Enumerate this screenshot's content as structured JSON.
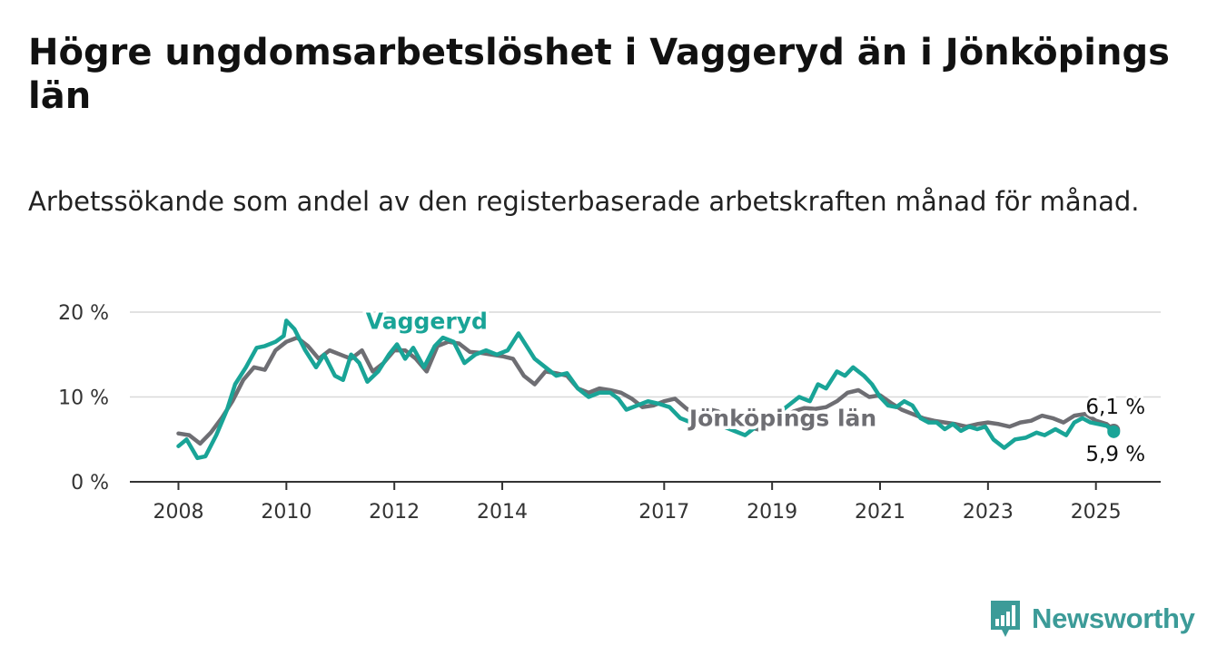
{
  "title": "Högre ungdomsarbetslöshet i Vaggeryd än i Jönköpings län",
  "subtitle": "Arbetssökande som andel av den registerbaserade arbetskraften månad för månad.",
  "brand": {
    "name": "Newsworthy",
    "color": "#3c9b98"
  },
  "chart_data": {
    "type": "line",
    "xlim": [
      2007.1,
      2026.2
    ],
    "ylim": [
      0,
      20
    ],
    "y_ticks": [
      {
        "value": 0,
        "label": "0 %"
      },
      {
        "value": 10,
        "label": "10 %"
      },
      {
        "value": 20,
        "label": "20 %"
      }
    ],
    "x_ticks": [
      {
        "value": 2008,
        "label": "2008"
      },
      {
        "value": 2010,
        "label": "2010"
      },
      {
        "value": 2012,
        "label": "2012"
      },
      {
        "value": 2014,
        "label": "2014"
      },
      {
        "value": 2017,
        "label": "2017"
      },
      {
        "value": 2019,
        "label": "2019"
      },
      {
        "value": 2021,
        "label": "2021"
      },
      {
        "value": 2023,
        "label": "2023"
      },
      {
        "value": 2025,
        "label": "2025"
      }
    ],
    "grid": "horizontal",
    "legend": "inline labels",
    "series": [
      {
        "name": "Jönköpings län",
        "color": "#6e6e73",
        "label_position": {
          "x": 2019.2,
          "y": 6.6
        },
        "end_label": "6,1 %",
        "points": [
          [
            2008.0,
            5.7
          ],
          [
            2008.2,
            5.5
          ],
          [
            2008.4,
            4.5
          ],
          [
            2008.6,
            5.8
          ],
          [
            2008.8,
            7.5
          ],
          [
            2009.0,
            9.5
          ],
          [
            2009.2,
            12.0
          ],
          [
            2009.4,
            13.5
          ],
          [
            2009.6,
            13.2
          ],
          [
            2009.8,
            15.5
          ],
          [
            2010.0,
            16.5
          ],
          [
            2010.2,
            17.0
          ],
          [
            2010.4,
            16.0
          ],
          [
            2010.6,
            14.5
          ],
          [
            2010.8,
            15.5
          ],
          [
            2011.0,
            15.0
          ],
          [
            2011.2,
            14.5
          ],
          [
            2011.4,
            15.5
          ],
          [
            2011.6,
            13.0
          ],
          [
            2011.8,
            14.0
          ],
          [
            2012.0,
            15.5
          ],
          [
            2012.2,
            15.5
          ],
          [
            2012.4,
            14.5
          ],
          [
            2012.6,
            13.0
          ],
          [
            2012.8,
            16.0
          ],
          [
            2013.0,
            16.5
          ],
          [
            2013.2,
            16.3
          ],
          [
            2013.4,
            15.3
          ],
          [
            2013.6,
            15.2
          ],
          [
            2013.8,
            15.0
          ],
          [
            2014.0,
            14.8
          ],
          [
            2014.2,
            14.5
          ],
          [
            2014.4,
            12.5
          ],
          [
            2014.6,
            11.5
          ],
          [
            2014.8,
            13.0
          ],
          [
            2015.0,
            12.8
          ],
          [
            2015.2,
            12.5
          ],
          [
            2015.4,
            11.0
          ],
          [
            2015.6,
            10.5
          ],
          [
            2015.8,
            11.0
          ],
          [
            2016.0,
            10.8
          ],
          [
            2016.2,
            10.5
          ],
          [
            2016.4,
            9.8
          ],
          [
            2016.6,
            8.8
          ],
          [
            2016.8,
            9.0
          ],
          [
            2017.0,
            9.5
          ],
          [
            2017.2,
            9.8
          ],
          [
            2017.4,
            8.7
          ],
          [
            2017.6,
            7.8
          ],
          [
            2017.8,
            8.6
          ],
          [
            2018.0,
            8.3
          ],
          [
            2018.2,
            7.2
          ],
          [
            2018.4,
            6.8
          ],
          [
            2018.6,
            6.4
          ],
          [
            2018.8,
            6.1
          ],
          [
            2019.0,
            6.6
          ],
          [
            2019.2,
            7.5
          ],
          [
            2019.4,
            8.3
          ],
          [
            2019.6,
            8.7
          ],
          [
            2019.8,
            8.6
          ],
          [
            2020.0,
            8.8
          ],
          [
            2020.2,
            9.5
          ],
          [
            2020.4,
            10.5
          ],
          [
            2020.6,
            10.8
          ],
          [
            2020.8,
            10.0
          ],
          [
            2021.0,
            10.2
          ],
          [
            2021.2,
            9.3
          ],
          [
            2021.4,
            8.5
          ],
          [
            2021.6,
            8.0
          ],
          [
            2021.8,
            7.5
          ],
          [
            2022.0,
            7.2
          ],
          [
            2022.2,
            7.0
          ],
          [
            2022.4,
            6.8
          ],
          [
            2022.6,
            6.5
          ],
          [
            2022.8,
            6.8
          ],
          [
            2023.0,
            7.0
          ],
          [
            2023.2,
            6.8
          ],
          [
            2023.4,
            6.5
          ],
          [
            2023.6,
            7.0
          ],
          [
            2023.8,
            7.2
          ],
          [
            2024.0,
            7.8
          ],
          [
            2024.2,
            7.5
          ],
          [
            2024.4,
            7.0
          ],
          [
            2024.6,
            7.8
          ],
          [
            2024.8,
            8.0
          ],
          [
            2025.0,
            7.2
          ],
          [
            2025.2,
            6.8
          ],
          [
            2025.33,
            6.1
          ]
        ]
      },
      {
        "name": "Vaggeryd",
        "color": "#19a497",
        "label_position": {
          "x": 2012.6,
          "y": 18.0
        },
        "end_label": "5,9 %",
        "points": [
          [
            2008.0,
            4.2
          ],
          [
            2008.15,
            5.0
          ],
          [
            2008.35,
            2.8
          ],
          [
            2008.5,
            3.0
          ],
          [
            2008.7,
            5.5
          ],
          [
            2008.9,
            8.5
          ],
          [
            2009.05,
            11.5
          ],
          [
            2009.25,
            13.5
          ],
          [
            2009.45,
            15.8
          ],
          [
            2009.6,
            16.0
          ],
          [
            2009.8,
            16.5
          ],
          [
            2009.95,
            17.2
          ],
          [
            2010.0,
            19.0
          ],
          [
            2010.15,
            18.0
          ],
          [
            2010.35,
            15.5
          ],
          [
            2010.55,
            13.5
          ],
          [
            2010.7,
            15.0
          ],
          [
            2010.9,
            12.5
          ],
          [
            2011.05,
            12.0
          ],
          [
            2011.2,
            15.0
          ],
          [
            2011.35,
            14.0
          ],
          [
            2011.5,
            11.8
          ],
          [
            2011.7,
            13.0
          ],
          [
            2011.9,
            15.0
          ],
          [
            2012.05,
            16.2
          ],
          [
            2012.2,
            14.5
          ],
          [
            2012.35,
            15.8
          ],
          [
            2012.55,
            13.5
          ],
          [
            2012.75,
            16.0
          ],
          [
            2012.9,
            17.0
          ],
          [
            2013.1,
            16.5
          ],
          [
            2013.3,
            14.0
          ],
          [
            2013.5,
            15.0
          ],
          [
            2013.7,
            15.5
          ],
          [
            2013.9,
            15.0
          ],
          [
            2014.1,
            15.5
          ],
          [
            2014.3,
            17.5
          ],
          [
            2014.45,
            16.0
          ],
          [
            2014.6,
            14.5
          ],
          [
            2014.8,
            13.5
          ],
          [
            2015.0,
            12.5
          ],
          [
            2015.2,
            12.8
          ],
          [
            2015.4,
            11.0
          ],
          [
            2015.6,
            10.0
          ],
          [
            2015.8,
            10.5
          ],
          [
            2016.0,
            10.5
          ],
          [
            2016.15,
            9.8
          ],
          [
            2016.3,
            8.5
          ],
          [
            2016.5,
            9.0
          ],
          [
            2016.7,
            9.5
          ],
          [
            2016.9,
            9.2
          ],
          [
            2017.1,
            8.8
          ],
          [
            2017.3,
            7.5
          ],
          [
            2017.5,
            7.0
          ],
          [
            2017.7,
            7.5
          ],
          [
            2017.9,
            7.0
          ],
          [
            2018.1,
            6.5
          ],
          [
            2018.3,
            6.0
          ],
          [
            2018.5,
            5.5
          ],
          [
            2018.7,
            6.5
          ],
          [
            2018.9,
            7.5
          ],
          [
            2019.1,
            8.0
          ],
          [
            2019.3,
            9.0
          ],
          [
            2019.5,
            10.0
          ],
          [
            2019.7,
            9.5
          ],
          [
            2019.85,
            11.5
          ],
          [
            2020.0,
            11.0
          ],
          [
            2020.2,
            13.0
          ],
          [
            2020.35,
            12.5
          ],
          [
            2020.5,
            13.5
          ],
          [
            2020.7,
            12.5
          ],
          [
            2020.85,
            11.5
          ],
          [
            2021.0,
            10.0
          ],
          [
            2021.15,
            9.0
          ],
          [
            2021.3,
            8.8
          ],
          [
            2021.45,
            9.5
          ],
          [
            2021.6,
            9.0
          ],
          [
            2021.75,
            7.5
          ],
          [
            2021.9,
            7.0
          ],
          [
            2022.05,
            7.0
          ],
          [
            2022.2,
            6.2
          ],
          [
            2022.35,
            6.8
          ],
          [
            2022.5,
            6.0
          ],
          [
            2022.65,
            6.5
          ],
          [
            2022.8,
            6.2
          ],
          [
            2022.95,
            6.5
          ],
          [
            2023.1,
            5.0
          ],
          [
            2023.3,
            4.0
          ],
          [
            2023.5,
            5.0
          ],
          [
            2023.7,
            5.2
          ],
          [
            2023.9,
            5.8
          ],
          [
            2024.05,
            5.5
          ],
          [
            2024.25,
            6.2
          ],
          [
            2024.45,
            5.5
          ],
          [
            2024.6,
            7.0
          ],
          [
            2024.75,
            7.5
          ],
          [
            2024.9,
            7.0
          ],
          [
            2025.05,
            6.8
          ],
          [
            2025.2,
            6.6
          ],
          [
            2025.33,
            5.9
          ]
        ]
      }
    ]
  }
}
